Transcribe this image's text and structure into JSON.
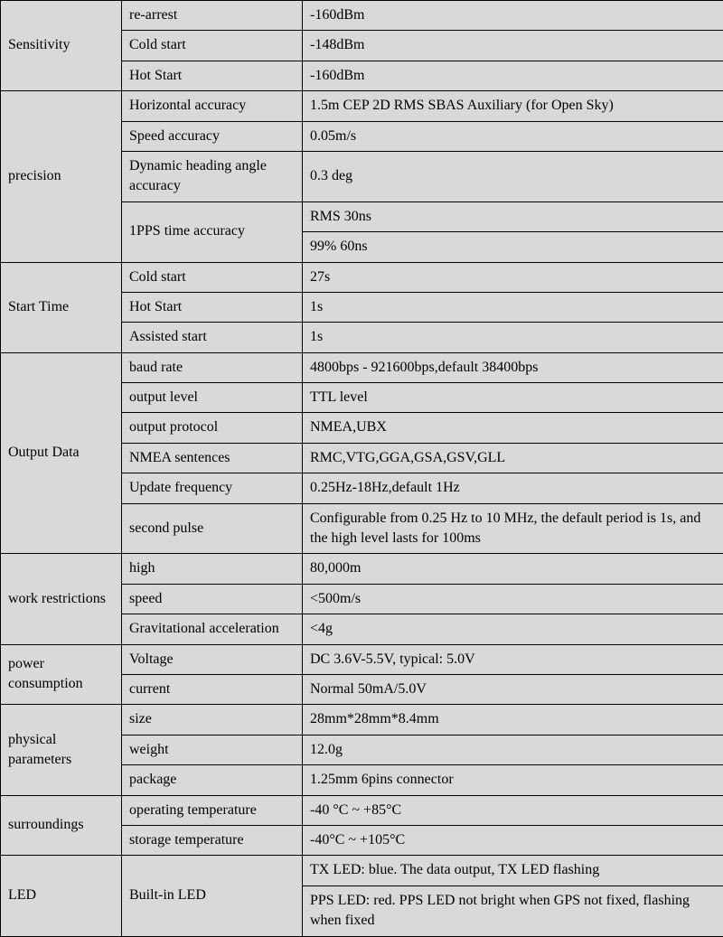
{
  "rows": [
    {
      "c1": "Sensitivity",
      "c1_rowspan": 3,
      "c2": "re-arrest",
      "c3": "-160dBm"
    },
    {
      "c2": "Cold start",
      "c3": "-148dBm"
    },
    {
      "c2": "Hot Start",
      "c3": "-160dBm"
    },
    {
      "c1": "precision",
      "c1_rowspan": 5,
      "c2": "Horizontal accuracy",
      "c3": "1.5m CEP 2D RMS SBAS Auxiliary (for Open Sky)"
    },
    {
      "c2": "Speed accuracy",
      "c3": "0.05m/s"
    },
    {
      "c2": "Dynamic heading angle accuracy",
      "c3": "0.3 deg"
    },
    {
      "c2": "1PPS time accuracy",
      "c2_rowspan": 2,
      "c3": "RMS 30ns"
    },
    {
      "c3": "99% 60ns"
    },
    {
      "c1": "Start Time",
      "c1_rowspan": 3,
      "c2": "Cold start",
      "c3": "27s"
    },
    {
      "c2": "Hot Start",
      "c3": "1s"
    },
    {
      "c2": "Assisted start",
      "c3": "1s"
    },
    {
      "c1": "Output Data",
      "c1_rowspan": 6,
      "c2": "baud rate",
      "c3": "4800bps - 921600bps,default 38400bps"
    },
    {
      "c2": "output level",
      "c3": "TTL level"
    },
    {
      "c2": "output protocol",
      "c3": "NMEA,UBX"
    },
    {
      "c2": "NMEA sentences",
      "c3": "RMC,VTG,GGA,GSA,GSV,GLL"
    },
    {
      "c2": "Update frequency",
      "c3": "0.25Hz-18Hz,default 1Hz"
    },
    {
      "c2": "second pulse",
      "c3": "Configurable from 0.25 Hz to 10 MHz, the default period is 1s, and the high level lasts for 100ms"
    },
    {
      "c1": "work restrictions",
      "c1_rowspan": 3,
      "c2": "high",
      "c3": "80,000m"
    },
    {
      "c2": "speed",
      "c3": "<500m/s"
    },
    {
      "c2": "Gravitational acceleration",
      "c3": "<4g"
    },
    {
      "c1": "power consumption",
      "c1_rowspan": 2,
      "c2": "Voltage",
      "c3": "DC 3.6V-5.5V, typical: 5.0V"
    },
    {
      "c2": "current",
      "c3": "Normal 50mA/5.0V"
    },
    {
      "c1": "physical parameters",
      "c1_rowspan": 3,
      "c2": "size",
      "c3": "28mm*28mm*8.4mm"
    },
    {
      "c2": "weight",
      "c3": "12.0g"
    },
    {
      "c2": "package",
      "c3": "1.25mm 6pins connector"
    },
    {
      "c1": "surroundings",
      "c1_rowspan": 2,
      "c2": "operating temperature",
      "c3": "-40 °C ~ +85°C"
    },
    {
      "c2": "storage temperature",
      "c3": "-40°C ~ +105°C"
    },
    {
      "c1": "LED",
      "c1_rowspan": 2,
      "c2": "Built-in LED",
      "c2_rowspan": 2,
      "c3": "TX LED: blue. The data output, TX LED flashing"
    },
    {
      "c3": "PPS LED: red. PPS LED not bright when GPS not fixed, flashing when fixed"
    }
  ]
}
